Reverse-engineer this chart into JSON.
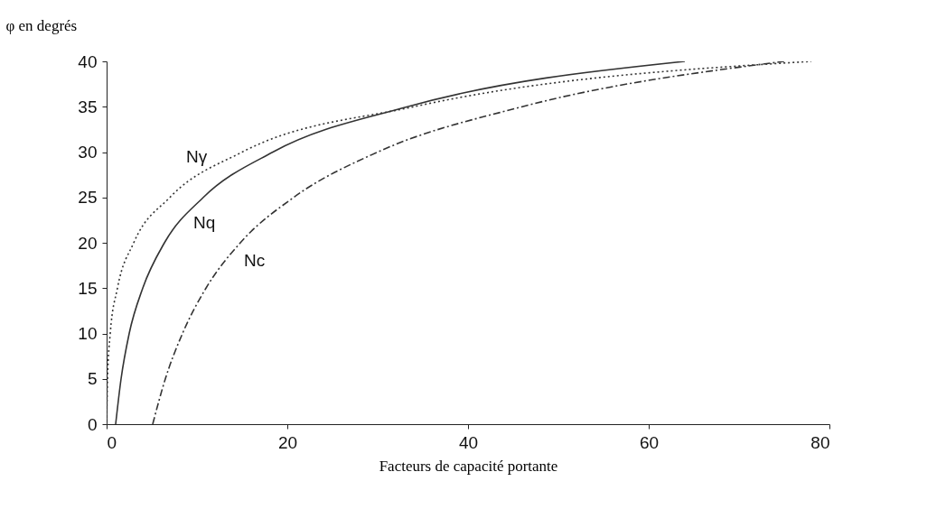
{
  "chart_data": {
    "type": "line",
    "ylabel": "φ en degrés",
    "xlabel": "Facteurs de capacité portante",
    "xlim": [
      0,
      80
    ],
    "xticks": [
      0,
      20,
      40,
      60,
      80
    ],
    "ylim": [
      0,
      40
    ],
    "yticks": [
      0,
      5,
      10,
      15,
      20,
      25,
      30,
      35,
      40
    ],
    "grid": false,
    "marker": "none",
    "series": [
      {
        "name": "Nγ",
        "color": "#333333",
        "line_style": "dotted",
        "x": [
          0,
          0.1,
          0.4,
          1.2,
          3,
          7,
          15,
          34,
          78
        ],
        "values": [
          0,
          5,
          10,
          15,
          20,
          25,
          30,
          35,
          40
        ]
      },
      {
        "name": "Nq",
        "color": "#333333",
        "line_style": "solid",
        "x": [
          1,
          1.6,
          2.5,
          4,
          6.4,
          10.7,
          18.4,
          33.3,
          64
        ],
        "values": [
          0,
          5,
          10,
          15,
          20,
          25,
          30,
          35,
          40
        ]
      },
      {
        "name": "Nc",
        "color": "#333333",
        "line_style": "dashed",
        "x": [
          5.1,
          6.5,
          8.4,
          11,
          14.8,
          20.7,
          30,
          46,
          75
        ],
        "values": [
          0,
          5,
          10,
          15,
          20,
          25,
          30,
          35,
          40
        ]
      }
    ]
  }
}
